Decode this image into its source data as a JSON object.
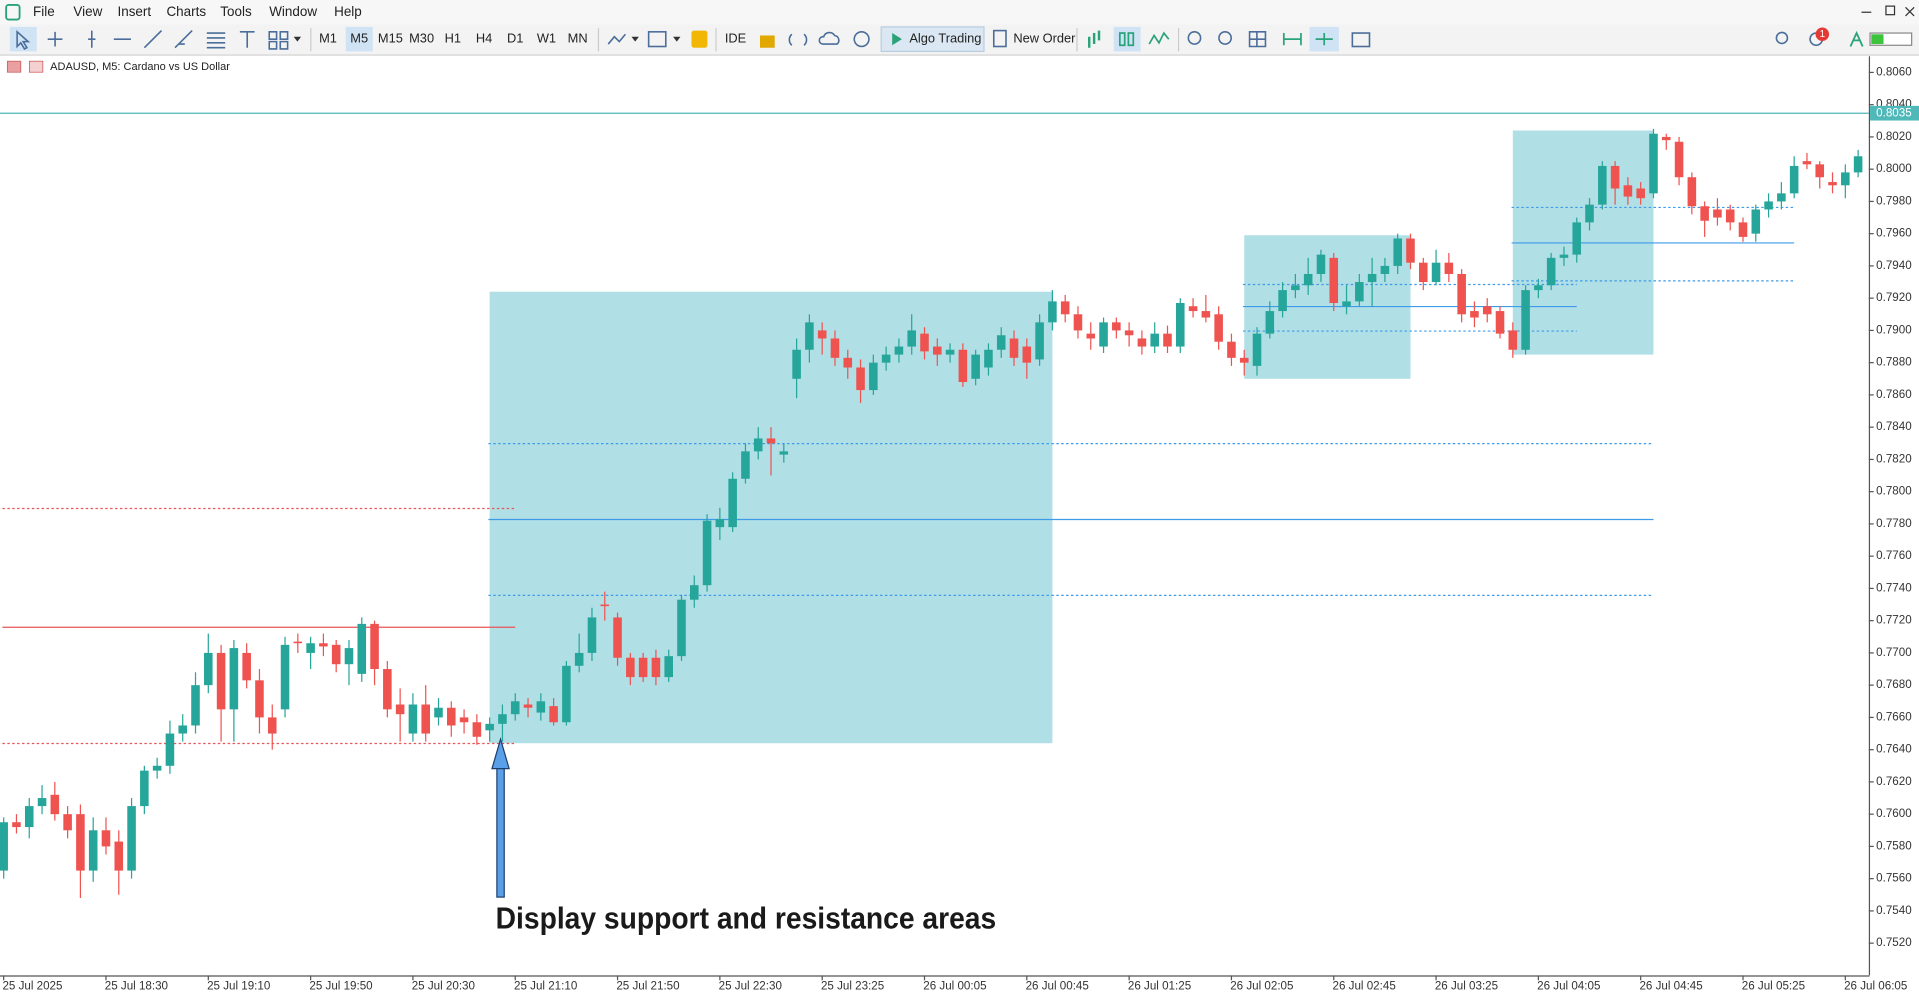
{
  "menu": [
    "File",
    "View",
    "Insert",
    "Charts",
    "Tools",
    "Window",
    "Help"
  ],
  "toolbar": {
    "timeframes": [
      "M1",
      "M5",
      "M15",
      "M30",
      "H1",
      "H4",
      "D1",
      "W1",
      "MN"
    ],
    "selected_timeframe": "M5",
    "ide": "IDE",
    "algo_trading": "Algo Trading",
    "new_order": "New Order",
    "notifications": "1"
  },
  "chart_data": {
    "type": "candlestick",
    "title": "ADAUSD, M5:  Cardano vs US Dollar",
    "up_color": "#26a69a",
    "down_color": "#ef5350",
    "categories": [
      "25 Jul 2025",
      null,
      null,
      null,
      null,
      null,
      null,
      null,
      "25 Jul 18:30",
      null,
      null,
      null,
      null,
      null,
      null,
      null,
      "25 Jul 19:10",
      null,
      null,
      null,
      null,
      null,
      null,
      null,
      "25 Jul 19:50",
      null,
      null,
      null,
      null,
      null,
      null,
      null,
      "25 Jul 20:30",
      null,
      null,
      null,
      null,
      null,
      null,
      null,
      "25 Jul 21:10",
      null,
      null,
      null,
      null,
      null,
      null,
      null,
      "25 Jul 21:50",
      null,
      null,
      null,
      null,
      null,
      null,
      null,
      "25 Jul 22:30",
      null,
      null,
      null,
      null,
      null,
      null,
      null,
      "25 Jul 23:25",
      null,
      null,
      null,
      null,
      null,
      null,
      null,
      "26 Jul 00:05",
      null,
      null,
      null,
      null,
      null,
      null,
      null,
      "26 Jul 00:45",
      null,
      null,
      null,
      null,
      null,
      null,
      null,
      "26 Jul 01:25",
      null,
      null,
      null,
      null,
      null,
      null,
      null,
      "26 Jul 02:05",
      null,
      null,
      null,
      null,
      null,
      null,
      null,
      "26 Jul 02:45",
      null,
      null,
      null,
      null,
      null,
      null,
      null,
      "26 Jul 03:25",
      null,
      null,
      null,
      null,
      null,
      null,
      null,
      "26 Jul 04:05",
      null,
      null,
      null,
      null,
      null,
      null,
      null,
      "26 Jul 04:45",
      null,
      null,
      null,
      null,
      null,
      null,
      null,
      "26 Jul 05:25",
      null,
      null,
      null,
      null,
      null,
      null,
      null,
      "26 Jul 06:05",
      null
    ],
    "open": [
      0.7565,
      0.7595,
      0.7592,
      0.7605,
      0.7612,
      0.76,
      0.76,
      0.7565,
      0.759,
      0.7583,
      0.7565,
      0.7605,
      0.7627,
      0.763,
      0.765,
      0.7655,
      0.768,
      0.77,
      0.7665,
      0.77,
      0.7683,
      0.766,
      0.7665,
      0.7707,
      0.77,
      0.7706,
      0.7705,
      0.7693,
      0.7687,
      0.7718,
      0.769,
      0.7668,
      0.765,
      0.7668,
      0.766,
      0.7666,
      0.766,
      0.7657,
      0.7652,
      0.7656,
      0.7662,
      0.7668,
      0.7663,
      0.7667,
      0.7657,
      0.7692,
      0.77,
      0.773,
      0.7722,
      0.7697,
      0.7697,
      0.7697,
      0.7685,
      0.7698,
      0.7733,
      0.7742,
      0.7778,
      0.7778,
      0.7808,
      0.7825,
      0.7833,
      0.7823,
      0.787,
      0.7888,
      0.79,
      0.7895,
      0.7883,
      0.7877,
      0.7863,
      0.788,
      0.7885,
      0.789,
      0.7898,
      0.789,
      0.7885,
      0.7888,
      0.787,
      0.7877,
      0.7888,
      0.7895,
      0.789,
      0.7882,
      0.7905,
      0.7918,
      0.791,
      0.7898,
      0.789,
      0.7905,
      0.79,
      0.7895,
      0.789,
      0.7898,
      0.789,
      0.7915,
      0.7912,
      0.791,
      0.7893,
      0.7883,
      0.7878,
      0.7898,
      0.7912,
      0.7925,
      0.7928,
      0.7935,
      0.7945,
      0.7915,
      0.7918,
      0.793,
      0.7935,
      0.794,
      0.7957,
      0.7942,
      0.793,
      0.7942,
      0.7935,
      0.7912,
      0.7915,
      0.7912,
      0.79,
      0.7888,
      0.7925,
      0.7928,
      0.7945,
      0.7947,
      0.7967,
      0.7978,
      0.8002,
      0.799,
      0.7988,
      0.7985,
      0.802,
      0.8017,
      0.7995,
      0.7977,
      0.7975,
      0.7975,
      0.7967,
      0.796,
      0.7975,
      0.798,
      0.7985,
      0.8005,
      0.8003,
      0.7992,
      0.799,
      0.7998
    ],
    "high": [
      0.7598,
      0.76,
      0.761,
      0.7618,
      0.762,
      0.7605,
      0.7606,
      0.7598,
      0.7598,
      0.759,
      0.761,
      0.763,
      0.7635,
      0.7658,
      0.7662,
      0.7688,
      0.7712,
      0.7705,
      0.7708,
      0.7706,
      0.769,
      0.7668,
      0.771,
      0.7712,
      0.771,
      0.7712,
      0.7708,
      0.7708,
      0.7722,
      0.772,
      0.7695,
      0.7678,
      0.7675,
      0.768,
      0.7672,
      0.767,
      0.7665,
      0.7662,
      0.766,
      0.7668,
      0.7675,
      0.7672,
      0.7675,
      0.7672,
      0.7695,
      0.7712,
      0.7728,
      0.7738,
      0.7725,
      0.77,
      0.77,
      0.7702,
      0.7702,
      0.7736,
      0.7748,
      0.7786,
      0.779,
      0.7812,
      0.783,
      0.784,
      0.784,
      0.783,
      0.7895,
      0.791,
      0.7905,
      0.79,
      0.7888,
      0.7882,
      0.7885,
      0.789,
      0.7895,
      0.791,
      0.7902,
      0.7895,
      0.7892,
      0.7892,
      0.7888,
      0.7892,
      0.7902,
      0.79,
      0.7895,
      0.791,
      0.7925,
      0.7922,
      0.7915,
      0.7905,
      0.7908,
      0.7908,
      0.7905,
      0.79,
      0.7905,
      0.7903,
      0.792,
      0.792,
      0.7922,
      0.7915,
      0.7898,
      0.7888,
      0.7902,
      0.7918,
      0.793,
      0.7935,
      0.7945,
      0.795,
      0.7948,
      0.7928,
      0.7935,
      0.7945,
      0.7945,
      0.796,
      0.796,
      0.7945,
      0.795,
      0.7948,
      0.7938,
      0.7918,
      0.792,
      0.7915,
      0.7905,
      0.7928,
      0.7932,
      0.7948,
      0.7952,
      0.797,
      0.7982,
      0.8005,
      0.8005,
      0.7995,
      0.7992,
      0.8025,
      0.8022,
      0.802,
      0.7998,
      0.798,
      0.7982,
      0.7978,
      0.797,
      0.7978,
      0.7985,
      0.7992,
      0.8008,
      0.801,
      0.8005,
      0.7998,
      0.8003,
      0.8012
    ],
    "low": [
      0.756,
      0.7588,
      0.7585,
      0.76,
      0.7596,
      0.7585,
      0.7548,
      0.7558,
      0.7575,
      0.755,
      0.756,
      0.76,
      0.7622,
      0.7625,
      0.7645,
      0.765,
      0.7675,
      0.7645,
      0.7645,
      0.7678,
      0.765,
      0.764,
      0.766,
      0.77,
      0.769,
      0.7698,
      0.7688,
      0.768,
      0.7682,
      0.768,
      0.766,
      0.7645,
      0.7645,
      0.7645,
      0.7655,
      0.7648,
      0.765,
      0.7643,
      0.7645,
      0.7645,
      0.7658,
      0.766,
      0.7658,
      0.7655,
      0.7655,
      0.7688,
      0.7695,
      0.772,
      0.7692,
      0.768,
      0.7682,
      0.768,
      0.7682,
      0.7695,
      0.7728,
      0.7738,
      0.777,
      0.7775,
      0.7805,
      0.782,
      0.781,
      0.7818,
      0.7858,
      0.788,
      0.7885,
      0.7878,
      0.787,
      0.7855,
      0.786,
      0.7875,
      0.788,
      0.7885,
      0.7882,
      0.7878,
      0.788,
      0.7865,
      0.7866,
      0.7872,
      0.7883,
      0.7878,
      0.787,
      0.7878,
      0.79,
      0.7905,
      0.7895,
      0.7888,
      0.7886,
      0.7895,
      0.789,
      0.7885,
      0.7886,
      0.7886,
      0.7886,
      0.7908,
      0.7905,
      0.7888,
      0.7878,
      0.7872,
      0.7872,
      0.7895,
      0.7908,
      0.792,
      0.7922,
      0.793,
      0.7912,
      0.791,
      0.7915,
      0.7915,
      0.793,
      0.7935,
      0.7938,
      0.7925,
      0.7928,
      0.793,
      0.7905,
      0.7902,
      0.7905,
      0.7895,
      0.7883,
      0.7885,
      0.792,
      0.7925,
      0.794,
      0.7942,
      0.7962,
      0.7975,
      0.7978,
      0.7978,
      0.7978,
      0.7982,
      0.8012,
      0.799,
      0.7972,
      0.7958,
      0.7965,
      0.7962,
      0.7955,
      0.7955,
      0.797,
      0.7975,
      0.7982,
      0.8,
      0.7988,
      0.7985,
      0.7982,
      0.7995
    ],
    "close": [
      0.7595,
      0.7592,
      0.7605,
      0.761,
      0.76,
      0.759,
      0.7565,
      0.759,
      0.758,
      0.7565,
      0.7605,
      0.7627,
      0.763,
      0.765,
      0.7655,
      0.768,
      0.77,
      0.7665,
      0.7703,
      0.7683,
      0.766,
      0.765,
      0.7705,
      0.7706,
      0.7706,
      0.7704,
      0.7693,
      0.7703,
      0.7718,
      0.769,
      0.7665,
      0.7662,
      0.7668,
      0.765,
      0.7666,
      0.7655,
      0.7657,
      0.7648,
      0.7656,
      0.7662,
      0.767,
      0.7666,
      0.767,
      0.7657,
      0.7692,
      0.77,
      0.7722,
      0.7729,
      0.7697,
      0.7685,
      0.7685,
      0.7685,
      0.7698,
      0.7733,
      0.7742,
      0.7782,
      0.7783,
      0.7808,
      0.7825,
      0.7833,
      0.783,
      0.7825,
      0.7888,
      0.7905,
      0.7895,
      0.7883,
      0.7877,
      0.7863,
      0.788,
      0.7885,
      0.789,
      0.79,
      0.7887,
      0.7885,
      0.7888,
      0.7868,
      0.7885,
      0.7888,
      0.7897,
      0.7883,
      0.788,
      0.7905,
      0.7918,
      0.791,
      0.79,
      0.7895,
      0.7905,
      0.79,
      0.7897,
      0.789,
      0.7898,
      0.789,
      0.7917,
      0.7912,
      0.7908,
      0.7893,
      0.7883,
      0.788,
      0.7898,
      0.7912,
      0.7925,
      0.7928,
      0.7935,
      0.7947,
      0.7917,
      0.7918,
      0.793,
      0.7935,
      0.794,
      0.7957,
      0.7942,
      0.793,
      0.7942,
      0.7935,
      0.791,
      0.7908,
      0.791,
      0.7898,
      0.7888,
      0.7925,
      0.7928,
      0.7945,
      0.7947,
      0.7967,
      0.7978,
      0.8002,
      0.7988,
      0.7983,
      0.7982,
      0.8022,
      0.8018,
      0.7995,
      0.7977,
      0.7968,
      0.797,
      0.7967,
      0.7958,
      0.7975,
      0.798,
      0.7985,
      0.8002,
      0.8003,
      0.7995,
      0.799,
      0.7998,
      0.8008
    ],
    "ylim": [
      0.75,
      0.807
    ],
    "yticks": [
      {
        "value": 0.806,
        "label": "0.8060"
      },
      {
        "value": 0.804,
        "label": "0.8040"
      },
      {
        "value": 0.802,
        "label": "0.8020"
      },
      {
        "value": 0.8,
        "label": "0.8000"
      },
      {
        "value": 0.798,
        "label": "0.7980"
      },
      {
        "value": 0.796,
        "label": "0.7960"
      },
      {
        "value": 0.794,
        "label": "0.7940"
      },
      {
        "value": 0.792,
        "label": "0.7920"
      },
      {
        "value": 0.79,
        "label": "0.7900"
      },
      {
        "value": 0.788,
        "label": "0.7880"
      },
      {
        "value": 0.786,
        "label": "0.7860"
      },
      {
        "value": 0.784,
        "label": "0.7840"
      },
      {
        "value": 0.782,
        "label": "0.7820"
      },
      {
        "value": 0.78,
        "label": "0.7800"
      },
      {
        "value": 0.778,
        "label": "0.7780"
      },
      {
        "value": 0.776,
        "label": "0.7760"
      },
      {
        "value": 0.774,
        "label": "0.7740"
      },
      {
        "value": 0.772,
        "label": "0.7720"
      },
      {
        "value": 0.77,
        "label": "0.7700"
      },
      {
        "value": 0.768,
        "label": "0.7680"
      },
      {
        "value": 0.766,
        "label": "0.7660"
      },
      {
        "value": 0.764,
        "label": "0.7640"
      },
      {
        "value": 0.762,
        "label": "0.7620"
      },
      {
        "value": 0.76,
        "label": "0.7600"
      },
      {
        "value": 0.758,
        "label": "0.7580"
      },
      {
        "value": 0.756,
        "label": "0.7560"
      },
      {
        "value": 0.754,
        "label": "0.7540"
      },
      {
        "value": 0.752,
        "label": "0.7520"
      }
    ],
    "grid": false,
    "current_price": {
      "value": 0.8035,
      "label": "0.8035",
      "color": "#4fb8b8"
    },
    "zones": [
      {
        "start": 38,
        "end": 82,
        "top": 0.7924,
        "bottom": 0.7644,
        "color": "#b0dfe5"
      },
      {
        "start": 97,
        "end": 110,
        "top": 0.7959,
        "bottom": 0.787,
        "color": "#b0dfe5"
      },
      {
        "start": 118,
        "end": 129,
        "top": 0.8024,
        "bottom": 0.7885,
        "color": "#b0dfe5"
      }
    ],
    "levels": [
      {
        "value": 0.7716,
        "start": 0,
        "end": 40,
        "style": "solid",
        "color": "#e8545a"
      },
      {
        "value": 0.779,
        "start": 0,
        "end": 40,
        "style": "dotted",
        "color": "#e8545a"
      },
      {
        "value": 0.7644,
        "start": 0,
        "end": 40,
        "style": "dotted",
        "color": "#e8545a"
      },
      {
        "value": 0.7783,
        "start": 38,
        "end": 129,
        "style": "solid",
        "color": "#3d9be9"
      },
      {
        "value": 0.783,
        "start": 38,
        "end": 129,
        "style": "dotted",
        "color": "#3d9be9"
      },
      {
        "value": 0.7736,
        "start": 38,
        "end": 129,
        "style": "dotted",
        "color": "#3d9be9"
      },
      {
        "value": 0.7915,
        "start": 97,
        "end": 123,
        "style": "solid",
        "color": "#3d9be9"
      },
      {
        "value": 0.7929,
        "start": 97,
        "end": 123,
        "style": "dotted",
        "color": "#3d9be9"
      },
      {
        "value": 0.79,
        "start": 97,
        "end": 123,
        "style": "dotted",
        "color": "#3d9be9"
      },
      {
        "value": 0.7955,
        "start": 118,
        "end": 140,
        "style": "solid",
        "color": "#3d9be9"
      },
      {
        "value": 0.7977,
        "start": 118,
        "end": 140,
        "style": "dotted",
        "color": "#3d9be9"
      },
      {
        "value": 0.7931,
        "start": 118,
        "end": 140,
        "style": "dotted",
        "color": "#3d9be9"
      }
    ],
    "annotation": "Display support and resistance areas"
  }
}
